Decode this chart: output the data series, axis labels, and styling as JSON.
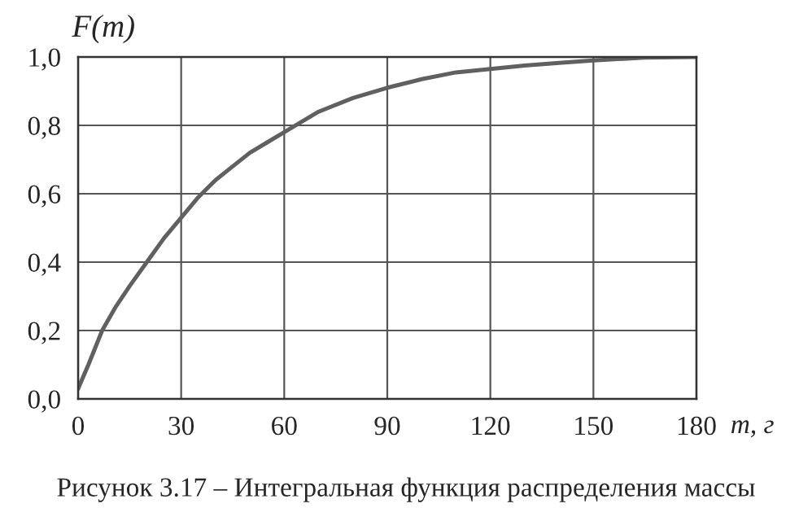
{
  "chart_data": {
    "type": "line",
    "ylabel": "F(m)",
    "xlabel": "m, г",
    "annotations": [
      "Рисунок 3.17 – Интегральная функция распределения массы"
    ],
    "xlim": [
      0,
      180
    ],
    "ylim": [
      0,
      1
    ],
    "xticks": [
      0,
      30,
      60,
      90,
      120,
      150,
      180
    ],
    "yticks": [
      {
        "value": 0,
        "label": "0,0"
      },
      {
        "value": 0.2,
        "label": "0,2"
      },
      {
        "value": 0.4,
        "label": "0,4"
      },
      {
        "value": 0.6,
        "label": "0,6"
      },
      {
        "value": 0.8,
        "label": "0,8"
      },
      {
        "value": 1,
        "label": "1,0"
      }
    ],
    "grid": true,
    "marker": "none",
    "line_style": "solid",
    "series": [
      {
        "color": "#606060",
        "x": [
          0,
          3,
          7,
          11,
          15,
          20,
          25,
          30,
          35,
          40,
          45,
          50,
          55,
          60,
          70,
          80,
          90,
          100,
          110,
          120,
          130,
          140,
          150,
          165,
          180
        ],
        "values": [
          0.03,
          0.1,
          0.2,
          0.27,
          0.33,
          0.4,
          0.47,
          0.53,
          0.59,
          0.64,
          0.68,
          0.72,
          0.75,
          0.78,
          0.84,
          0.88,
          0.91,
          0.935,
          0.955,
          0.965,
          0.975,
          0.983,
          0.99,
          0.998,
          1.0
        ]
      }
    ]
  }
}
